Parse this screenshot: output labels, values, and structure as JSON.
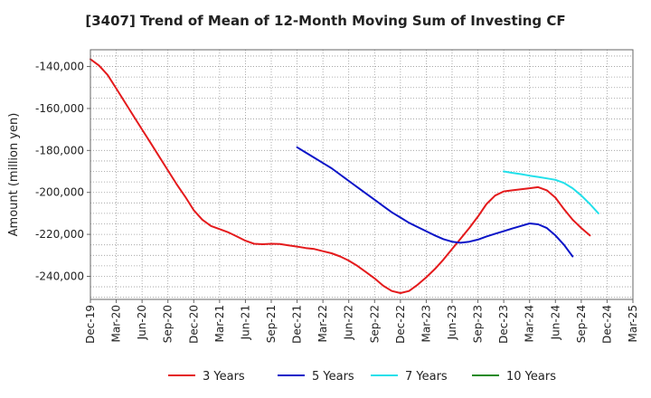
{
  "chart_data": {
    "type": "line",
    "title": "[3407]  Trend of Mean of 12-Month Moving Sum of Investing CF",
    "xlabel": "",
    "ylabel": "Amount (million yen)",
    "ylim": [
      -251000,
      -132000
    ],
    "yticks": [
      -140000,
      -160000,
      -180000,
      -200000,
      -220000,
      -240000
    ],
    "ytick_labels": [
      "-140,000",
      "-160,000",
      "-180,000",
      "-200,000",
      "-220,000",
      "-240,000"
    ],
    "x_start": "Dec-19",
    "num_months": 63,
    "xtick_labels": [
      "Dec-19",
      "Mar-20",
      "Jun-20",
      "Sep-20",
      "Dec-20",
      "Mar-21",
      "Jun-21",
      "Sep-21",
      "Dec-21",
      "Mar-22",
      "Jun-22",
      "Sep-22",
      "Dec-22",
      "Mar-23",
      "Jun-23",
      "Sep-23",
      "Dec-23",
      "Mar-24",
      "Jun-24",
      "Sep-24",
      "Dec-24",
      "Mar-25"
    ],
    "grid": true,
    "legend_position": "bottom",
    "series": [
      {
        "name": "3 Years",
        "color": "#e41a1c",
        "start_index": 0,
        "values": [
          -136500,
          -139500,
          -144000,
          -150500,
          -157000,
          -163500,
          -170000,
          -176500,
          -183000,
          -189500,
          -196000,
          -202000,
          -208500,
          -213000,
          -216000,
          -217500,
          -219000,
          -221000,
          -223000,
          -224500,
          -224700,
          -224500,
          -224600,
          -225200,
          -225800,
          -226500,
          -227000,
          -228000,
          -229000,
          -230500,
          -232500,
          -235000,
          -238000,
          -241000,
          -244500,
          -247000,
          -248000,
          -247000,
          -244000,
          -240500,
          -236500,
          -232000,
          -227000,
          -222000,
          -217000,
          -211500,
          -205500,
          -201500,
          -199500,
          -199000,
          -198500,
          -198000,
          -197500,
          -199000,
          -202500,
          -208000,
          -213000,
          -217000,
          -220500
        ]
      },
      {
        "name": "5 Years",
        "color": "#0a14c8",
        "start_index": 24,
        "values": [
          -178500,
          -181000,
          -183500,
          -186000,
          -188500,
          -191500,
          -194500,
          -197500,
          -200500,
          -203500,
          -206500,
          -209500,
          -212000,
          -214500,
          -216500,
          -218500,
          -220500,
          -222300,
          -223500,
          -224000,
          -223500,
          -222500,
          -221000,
          -219700,
          -218500,
          -217200,
          -216000,
          -214800,
          -215200,
          -217000,
          -220500,
          -225000,
          -230500
        ]
      },
      {
        "name": "7 Years",
        "color": "#22e0ea",
        "start_index": 48,
        "values": [
          -190000,
          -190700,
          -191300,
          -192000,
          -192600,
          -193300,
          -194000,
          -195500,
          -198000,
          -201500,
          -205500,
          -210000
        ]
      },
      {
        "name": "10 Years",
        "color": "#1f8a1f",
        "start_index": 0,
        "values": []
      }
    ]
  }
}
